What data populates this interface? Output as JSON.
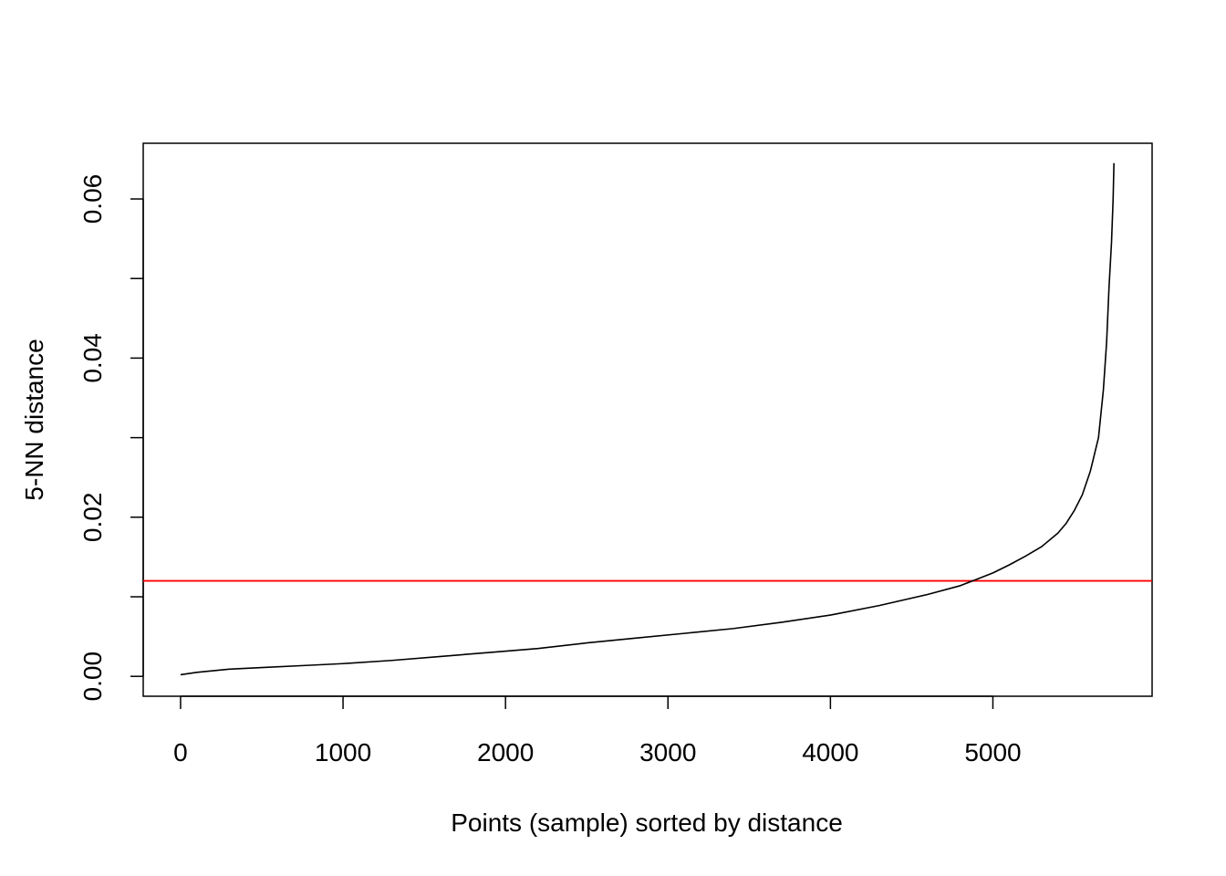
{
  "chart_data": {
    "type": "line",
    "title": "",
    "xlabel": "Points (sample) sorted by distance",
    "ylabel": "5-NN distance",
    "xlim": [
      -230,
      5980
    ],
    "ylim": [
      -0.0025,
      0.067
    ],
    "x_ticks": [
      {
        "value": 0,
        "label": "0"
      },
      {
        "value": 1000,
        "label": "1000"
      },
      {
        "value": 2000,
        "label": "2000"
      },
      {
        "value": 3000,
        "label": "3000"
      },
      {
        "value": 4000,
        "label": "4000"
      },
      {
        "value": 5000,
        "label": "5000"
      }
    ],
    "y_ticks": [
      {
        "value": 0.0,
        "label": "0.00"
      },
      {
        "value": 0.01,
        "label": ""
      },
      {
        "value": 0.02,
        "label": "0.02"
      },
      {
        "value": 0.03,
        "label": ""
      },
      {
        "value": 0.04,
        "label": "0.04"
      },
      {
        "value": 0.05,
        "label": ""
      },
      {
        "value": 0.06,
        "label": "0.06"
      }
    ],
    "grid": false,
    "series": [
      {
        "color": "#000000",
        "x": [
          0,
          100,
          300,
          500,
          800,
          1000,
          1300,
          1600,
          1900,
          2200,
          2500,
          2800,
          3100,
          3400,
          3700,
          4000,
          4300,
          4600,
          4800,
          4900,
          5000,
          5100,
          5200,
          5300,
          5400,
          5450,
          5500,
          5550,
          5600,
          5650,
          5680,
          5700,
          5715,
          5730,
          5740,
          5745
        ],
        "y": [
          0.0002,
          0.0005,
          0.0009,
          0.0011,
          0.0014,
          0.0016,
          0.002,
          0.0025,
          0.003,
          0.0035,
          0.0042,
          0.0048,
          0.0054,
          0.006,
          0.0068,
          0.0077,
          0.0089,
          0.0103,
          0.0114,
          0.0122,
          0.013,
          0.014,
          0.0151,
          0.0163,
          0.018,
          0.0192,
          0.0208,
          0.0228,
          0.0258,
          0.03,
          0.036,
          0.042,
          0.049,
          0.0545,
          0.06,
          0.0645
        ]
      }
    ],
    "reference_lines": [
      {
        "orientation": "horizontal",
        "value": 0.012,
        "color": "#ff0000"
      }
    ]
  }
}
